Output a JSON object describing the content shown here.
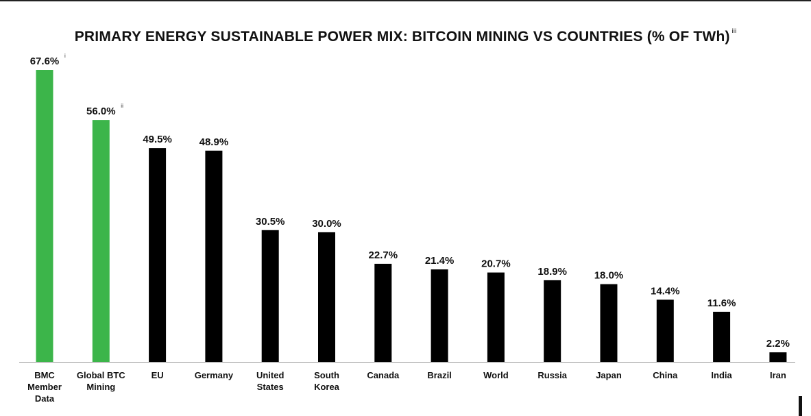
{
  "chart_data": {
    "type": "bar",
    "title": "PRIMARY ENERGY SUSTAINABLE POWER MIX: BITCOIN MINING VS COUNTRIES (% OF TWh)",
    "title_note": "iii",
    "xlabel": "",
    "ylabel": "",
    "ylim": [
      0,
      67.6
    ],
    "grid": false,
    "legend": "none",
    "categories": [
      [
        "BMC",
        "Member",
        "Data"
      ],
      [
        "Global BTC",
        "Mining"
      ],
      [
        "EU"
      ],
      [
        "Germany"
      ],
      [
        "United",
        "States"
      ],
      [
        "South",
        "Korea"
      ],
      [
        "Canada"
      ],
      [
        "Brazil"
      ],
      [
        "World"
      ],
      [
        "Russia"
      ],
      [
        "Japan"
      ],
      [
        "China"
      ],
      [
        "India"
      ],
      [
        "Iran"
      ]
    ],
    "values": [
      67.6,
      56.0,
      49.5,
      48.9,
      30.5,
      30.0,
      22.7,
      21.4,
      20.7,
      18.9,
      18.0,
      14.4,
      11.6,
      2.2
    ],
    "data_labels": [
      "67.6%",
      "56.0%",
      "49.5%",
      "48.9%",
      "30.5%",
      "30.0%",
      "22.7%",
      "21.4%",
      "20.7%",
      "18.9%",
      "18.0%",
      "14.4%",
      "11.6%",
      "2.2%"
    ],
    "label_notes": [
      "i",
      "ii",
      "",
      "",
      "",
      "",
      "",
      "",
      "",
      "",
      "",
      "",
      "",
      ""
    ],
    "colors": {
      "highlight": "#3cb54a",
      "default": "#000000",
      "axis": "#9a9a9a"
    },
    "highlight_count": 2
  }
}
